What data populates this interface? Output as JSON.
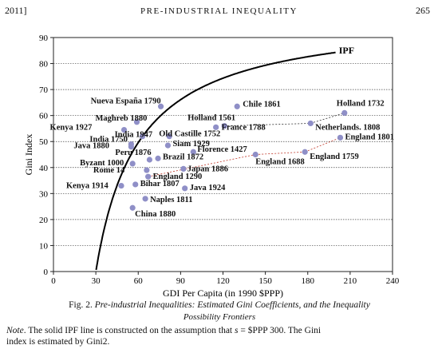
{
  "header": {
    "left": "2011]",
    "center": "PRE-INDUSTRIAL INEQUALITY",
    "right": "265"
  },
  "chart_data": {
    "type": "scatter",
    "xlabel": "GDI Per Capita (in 1990 $PPP)",
    "ylabel": "Gini Index",
    "xlim": [
      0,
      240
    ],
    "ylim": [
      0,
      90
    ],
    "xticks": [
      0,
      30,
      60,
      90,
      120,
      150,
      180,
      210,
      240
    ],
    "yticks": [
      0,
      10,
      20,
      30,
      40,
      50,
      60,
      70,
      80,
      90
    ],
    "grid": "horizontal",
    "curve_label": "IPF",
    "points": [
      {
        "label": "Nueva España 1790",
        "x": 76,
        "y": 63.5
      },
      {
        "label": "Maghreb 1880",
        "x": 59,
        "y": 57.5
      },
      {
        "label": "Kenya 1927",
        "x": 50,
        "y": 54.5
      },
      {
        "label": "India 1947",
        "x": 63,
        "y": 52
      },
      {
        "label": "India 1750",
        "x": 55,
        "y": 49
      },
      {
        "label": "Java 1880",
        "x": 55,
        "y": 48
      },
      {
        "label": "Old Castille 1752",
        "x": 82,
        "y": 52
      },
      {
        "label": "Siam 1929",
        "x": 81,
        "y": 48.5
      },
      {
        "label": "Peru 1876",
        "x": 68,
        "y": 43
      },
      {
        "label": "Brazil 1872",
        "x": 74,
        "y": 43.5
      },
      {
        "label": "Byzant 1000",
        "x": 56,
        "y": 41.5
      },
      {
        "label": "Rome 14",
        "x": 66,
        "y": 39
      },
      {
        "label": "England 1290",
        "x": 67,
        "y": 36.5
      },
      {
        "label": "Japan 1886",
        "x": 92,
        "y": 39.5
      },
      {
        "label": "Kenya 1914",
        "x": 48,
        "y": 33
      },
      {
        "label": "Bihar 1807",
        "x": 58,
        "y": 33.5
      },
      {
        "label": "Java 1924",
        "x": 93,
        "y": 32
      },
      {
        "label": "Naples 1811",
        "x": 65,
        "y": 28
      },
      {
        "label": "China 1880",
        "x": 56,
        "y": 24.5
      },
      {
        "label": "Chile 1861",
        "x": 130,
        "y": 63.5
      },
      {
        "label": "Holland 1561",
        "x": 121,
        "y": 56
      },
      {
        "label": "France 1788",
        "x": 115,
        "y": 55.5
      },
      {
        "label": "Florence 1427",
        "x": 99,
        "y": 46
      },
      {
        "label": "England 1688",
        "x": 143,
        "y": 45
      },
      {
        "label": "Holland 1732",
        "x": 206,
        "y": 61
      },
      {
        "label": "Netherlands. 1808",
        "x": 182,
        "y": 57
      },
      {
        "label": "England 1801",
        "x": 203,
        "y": 51.5
      },
      {
        "label": "England 1759",
        "x": 178,
        "y": 46
      }
    ]
  },
  "caption": {
    "fig_num": "Fig. 2.",
    "title_line1": "Pre-industrial Inequalities: Estimated Gini Coefficients, and the Inequality",
    "title_line2": "Possibility Frontiers"
  },
  "note": {
    "label": "Note",
    "line1": ". The solid IPF line is constructed on the assumption that ",
    "var": "s",
    "line1_end": " = $PPP 300. The Gini",
    "line2": "index is estimated by Gini2."
  }
}
